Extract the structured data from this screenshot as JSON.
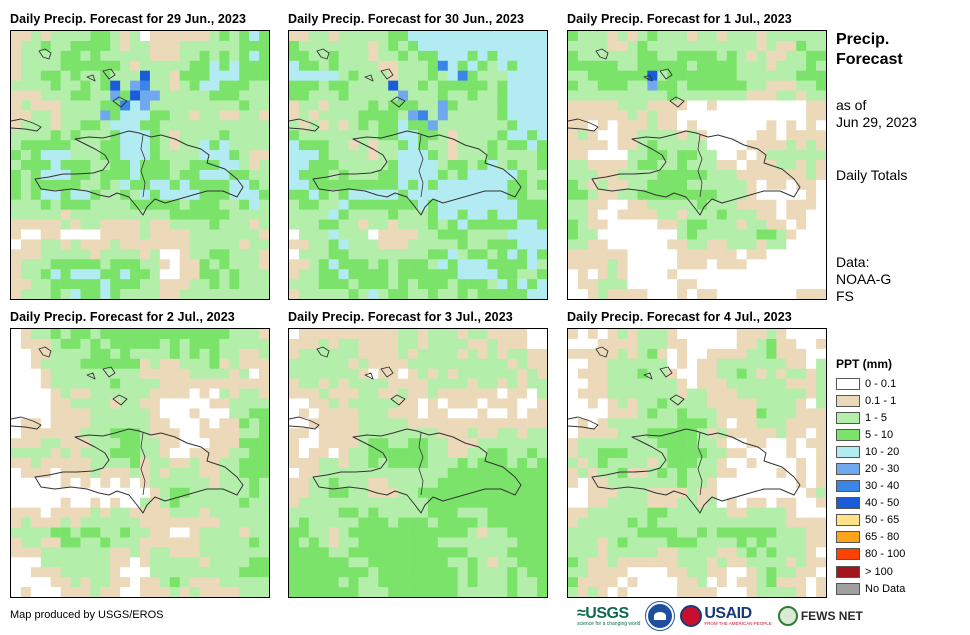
{
  "panels": [
    {
      "title": "Daily Precip. Forecast for 29 Jun., 2023",
      "wet": 0.45,
      "heavy": [
        [
          5,
          12
        ],
        [
          5,
          13
        ],
        [
          6,
          13
        ],
        [
          6,
          14
        ],
        [
          6,
          12
        ],
        [
          4,
          13
        ],
        [
          7,
          11
        ],
        [
          5,
          10
        ],
        [
          6,
          10
        ],
        [
          8,
          9
        ],
        [
          7,
          13
        ]
      ],
      "moderate_region": "central-east"
    },
    {
      "title": "Daily Precip. Forecast for 30 Jun., 2023",
      "wet": 0.55,
      "heavy": [
        [
          5,
          10
        ],
        [
          6,
          11
        ],
        [
          8,
          13
        ],
        [
          8,
          15
        ],
        [
          9,
          14
        ],
        [
          7,
          15
        ],
        [
          8,
          12
        ],
        [
          3,
          15
        ],
        [
          4,
          17
        ]
      ],
      "moderate_region": "east"
    },
    {
      "title": "Daily Precip. Forecast for 1 Jul., 2023",
      "wet": 0.28,
      "heavy": [
        [
          5,
          8
        ],
        [
          4,
          8
        ]
      ],
      "moderate_region": "west"
    },
    {
      "title": "Daily Precip. Forecast for 2 Jul., 2023",
      "wet": 0.32,
      "heavy": [],
      "moderate_region": "north-east"
    },
    {
      "title": "Daily Precip. Forecast for 3 Jul., 2023",
      "wet": 0.38,
      "heavy": [],
      "moderate_region": "south"
    },
    {
      "title": "Daily Precip. Forecast for 4 Jul., 2023",
      "wet": 0.3,
      "heavy": [],
      "moderate_region": "central"
    }
  ],
  "info": {
    "title": "Precip. Forecast",
    "as_of_label": "as of",
    "as_of_date": "Jun 29, 2023",
    "totals": "Daily Totals",
    "data_label": "Data:",
    "data_source": "NOAA-GFS"
  },
  "legend": {
    "title": "PPT (mm)",
    "items": [
      {
        "label": "0 - 0.1",
        "color": "#ffffff"
      },
      {
        "label": "0.1 - 1",
        "color": "#ecd9b9"
      },
      {
        "label": "1 - 5",
        "color": "#b4eeab"
      },
      {
        "label": "5 - 10",
        "color": "#7be36a"
      },
      {
        "label": "10 - 20",
        "color": "#b2ecf2"
      },
      {
        "label": "20 - 30",
        "color": "#6fa8ed"
      },
      {
        "label": "30 - 40",
        "color": "#3b84e8"
      },
      {
        "label": "40 - 50",
        "color": "#1a5bd8"
      },
      {
        "label": "50 - 65",
        "color": "#ffe286"
      },
      {
        "label": "65 - 80",
        "color": "#ffa319"
      },
      {
        "label": "80 - 100",
        "color": "#ff4200"
      },
      {
        "label": "> 100",
        "color": "#a3161c"
      },
      {
        "label": "No Data",
        "color": "#a0a0a0"
      }
    ]
  },
  "credit": "Map produced by USGS/EROS",
  "logos": {
    "usgs": "≈USGS",
    "usgs_tag": "science for a changing world",
    "usaid": "USAID",
    "usaid_tag": "FROM THE AMERICAN PEOPLE",
    "fews": "FEWS NET"
  }
}
